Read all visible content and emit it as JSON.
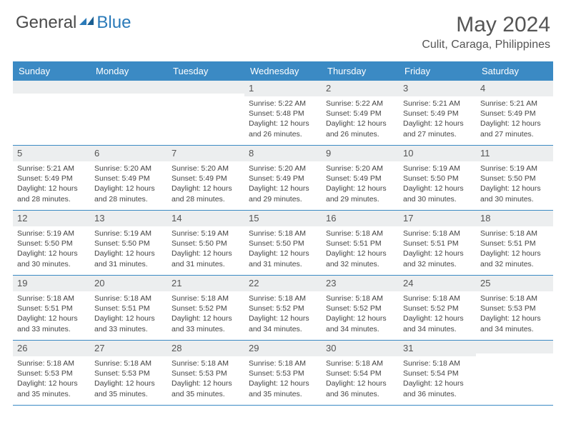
{
  "logo": {
    "general": "General",
    "blue": "Blue"
  },
  "title": "May 2024",
  "location": "Culit, Caraga, Philippines",
  "colors": {
    "header_bg": "#3b8ac4",
    "header_text": "#ffffff",
    "daynum_bg": "#eceeef",
    "border": "#3b8ac4",
    "logo_blue": "#2a7ab9",
    "text": "#444444"
  },
  "day_headers": [
    "Sunday",
    "Monday",
    "Tuesday",
    "Wednesday",
    "Thursday",
    "Friday",
    "Saturday"
  ],
  "weeks": [
    [
      {
        "num": "",
        "sunrise": "",
        "sunset": "",
        "daylight": ""
      },
      {
        "num": "",
        "sunrise": "",
        "sunset": "",
        "daylight": ""
      },
      {
        "num": "",
        "sunrise": "",
        "sunset": "",
        "daylight": ""
      },
      {
        "num": "1",
        "sunrise": "5:22 AM",
        "sunset": "5:48 PM",
        "daylight": "12 hours and 26 minutes."
      },
      {
        "num": "2",
        "sunrise": "5:22 AM",
        "sunset": "5:49 PM",
        "daylight": "12 hours and 26 minutes."
      },
      {
        "num": "3",
        "sunrise": "5:21 AM",
        "sunset": "5:49 PM",
        "daylight": "12 hours and 27 minutes."
      },
      {
        "num": "4",
        "sunrise": "5:21 AM",
        "sunset": "5:49 PM",
        "daylight": "12 hours and 27 minutes."
      }
    ],
    [
      {
        "num": "5",
        "sunrise": "5:21 AM",
        "sunset": "5:49 PM",
        "daylight": "12 hours and 28 minutes."
      },
      {
        "num": "6",
        "sunrise": "5:20 AM",
        "sunset": "5:49 PM",
        "daylight": "12 hours and 28 minutes."
      },
      {
        "num": "7",
        "sunrise": "5:20 AM",
        "sunset": "5:49 PM",
        "daylight": "12 hours and 28 minutes."
      },
      {
        "num": "8",
        "sunrise": "5:20 AM",
        "sunset": "5:49 PM",
        "daylight": "12 hours and 29 minutes."
      },
      {
        "num": "9",
        "sunrise": "5:20 AM",
        "sunset": "5:49 PM",
        "daylight": "12 hours and 29 minutes."
      },
      {
        "num": "10",
        "sunrise": "5:19 AM",
        "sunset": "5:50 PM",
        "daylight": "12 hours and 30 minutes."
      },
      {
        "num": "11",
        "sunrise": "5:19 AM",
        "sunset": "5:50 PM",
        "daylight": "12 hours and 30 minutes."
      }
    ],
    [
      {
        "num": "12",
        "sunrise": "5:19 AM",
        "sunset": "5:50 PM",
        "daylight": "12 hours and 30 minutes."
      },
      {
        "num": "13",
        "sunrise": "5:19 AM",
        "sunset": "5:50 PM",
        "daylight": "12 hours and 31 minutes."
      },
      {
        "num": "14",
        "sunrise": "5:19 AM",
        "sunset": "5:50 PM",
        "daylight": "12 hours and 31 minutes."
      },
      {
        "num": "15",
        "sunrise": "5:18 AM",
        "sunset": "5:50 PM",
        "daylight": "12 hours and 31 minutes."
      },
      {
        "num": "16",
        "sunrise": "5:18 AM",
        "sunset": "5:51 PM",
        "daylight": "12 hours and 32 minutes."
      },
      {
        "num": "17",
        "sunrise": "5:18 AM",
        "sunset": "5:51 PM",
        "daylight": "12 hours and 32 minutes."
      },
      {
        "num": "18",
        "sunrise": "5:18 AM",
        "sunset": "5:51 PM",
        "daylight": "12 hours and 32 minutes."
      }
    ],
    [
      {
        "num": "19",
        "sunrise": "5:18 AM",
        "sunset": "5:51 PM",
        "daylight": "12 hours and 33 minutes."
      },
      {
        "num": "20",
        "sunrise": "5:18 AM",
        "sunset": "5:51 PM",
        "daylight": "12 hours and 33 minutes."
      },
      {
        "num": "21",
        "sunrise": "5:18 AM",
        "sunset": "5:52 PM",
        "daylight": "12 hours and 33 minutes."
      },
      {
        "num": "22",
        "sunrise": "5:18 AM",
        "sunset": "5:52 PM",
        "daylight": "12 hours and 34 minutes."
      },
      {
        "num": "23",
        "sunrise": "5:18 AM",
        "sunset": "5:52 PM",
        "daylight": "12 hours and 34 minutes."
      },
      {
        "num": "24",
        "sunrise": "5:18 AM",
        "sunset": "5:52 PM",
        "daylight": "12 hours and 34 minutes."
      },
      {
        "num": "25",
        "sunrise": "5:18 AM",
        "sunset": "5:53 PM",
        "daylight": "12 hours and 34 minutes."
      }
    ],
    [
      {
        "num": "26",
        "sunrise": "5:18 AM",
        "sunset": "5:53 PM",
        "daylight": "12 hours and 35 minutes."
      },
      {
        "num": "27",
        "sunrise": "5:18 AM",
        "sunset": "5:53 PM",
        "daylight": "12 hours and 35 minutes."
      },
      {
        "num": "28",
        "sunrise": "5:18 AM",
        "sunset": "5:53 PM",
        "daylight": "12 hours and 35 minutes."
      },
      {
        "num": "29",
        "sunrise": "5:18 AM",
        "sunset": "5:53 PM",
        "daylight": "12 hours and 35 minutes."
      },
      {
        "num": "30",
        "sunrise": "5:18 AM",
        "sunset": "5:54 PM",
        "daylight": "12 hours and 36 minutes."
      },
      {
        "num": "31",
        "sunrise": "5:18 AM",
        "sunset": "5:54 PM",
        "daylight": "12 hours and 36 minutes."
      },
      {
        "num": "",
        "sunrise": "",
        "sunset": "",
        "daylight": ""
      }
    ]
  ],
  "labels": {
    "sunrise": "Sunrise:",
    "sunset": "Sunset:",
    "daylight": "Daylight:"
  }
}
